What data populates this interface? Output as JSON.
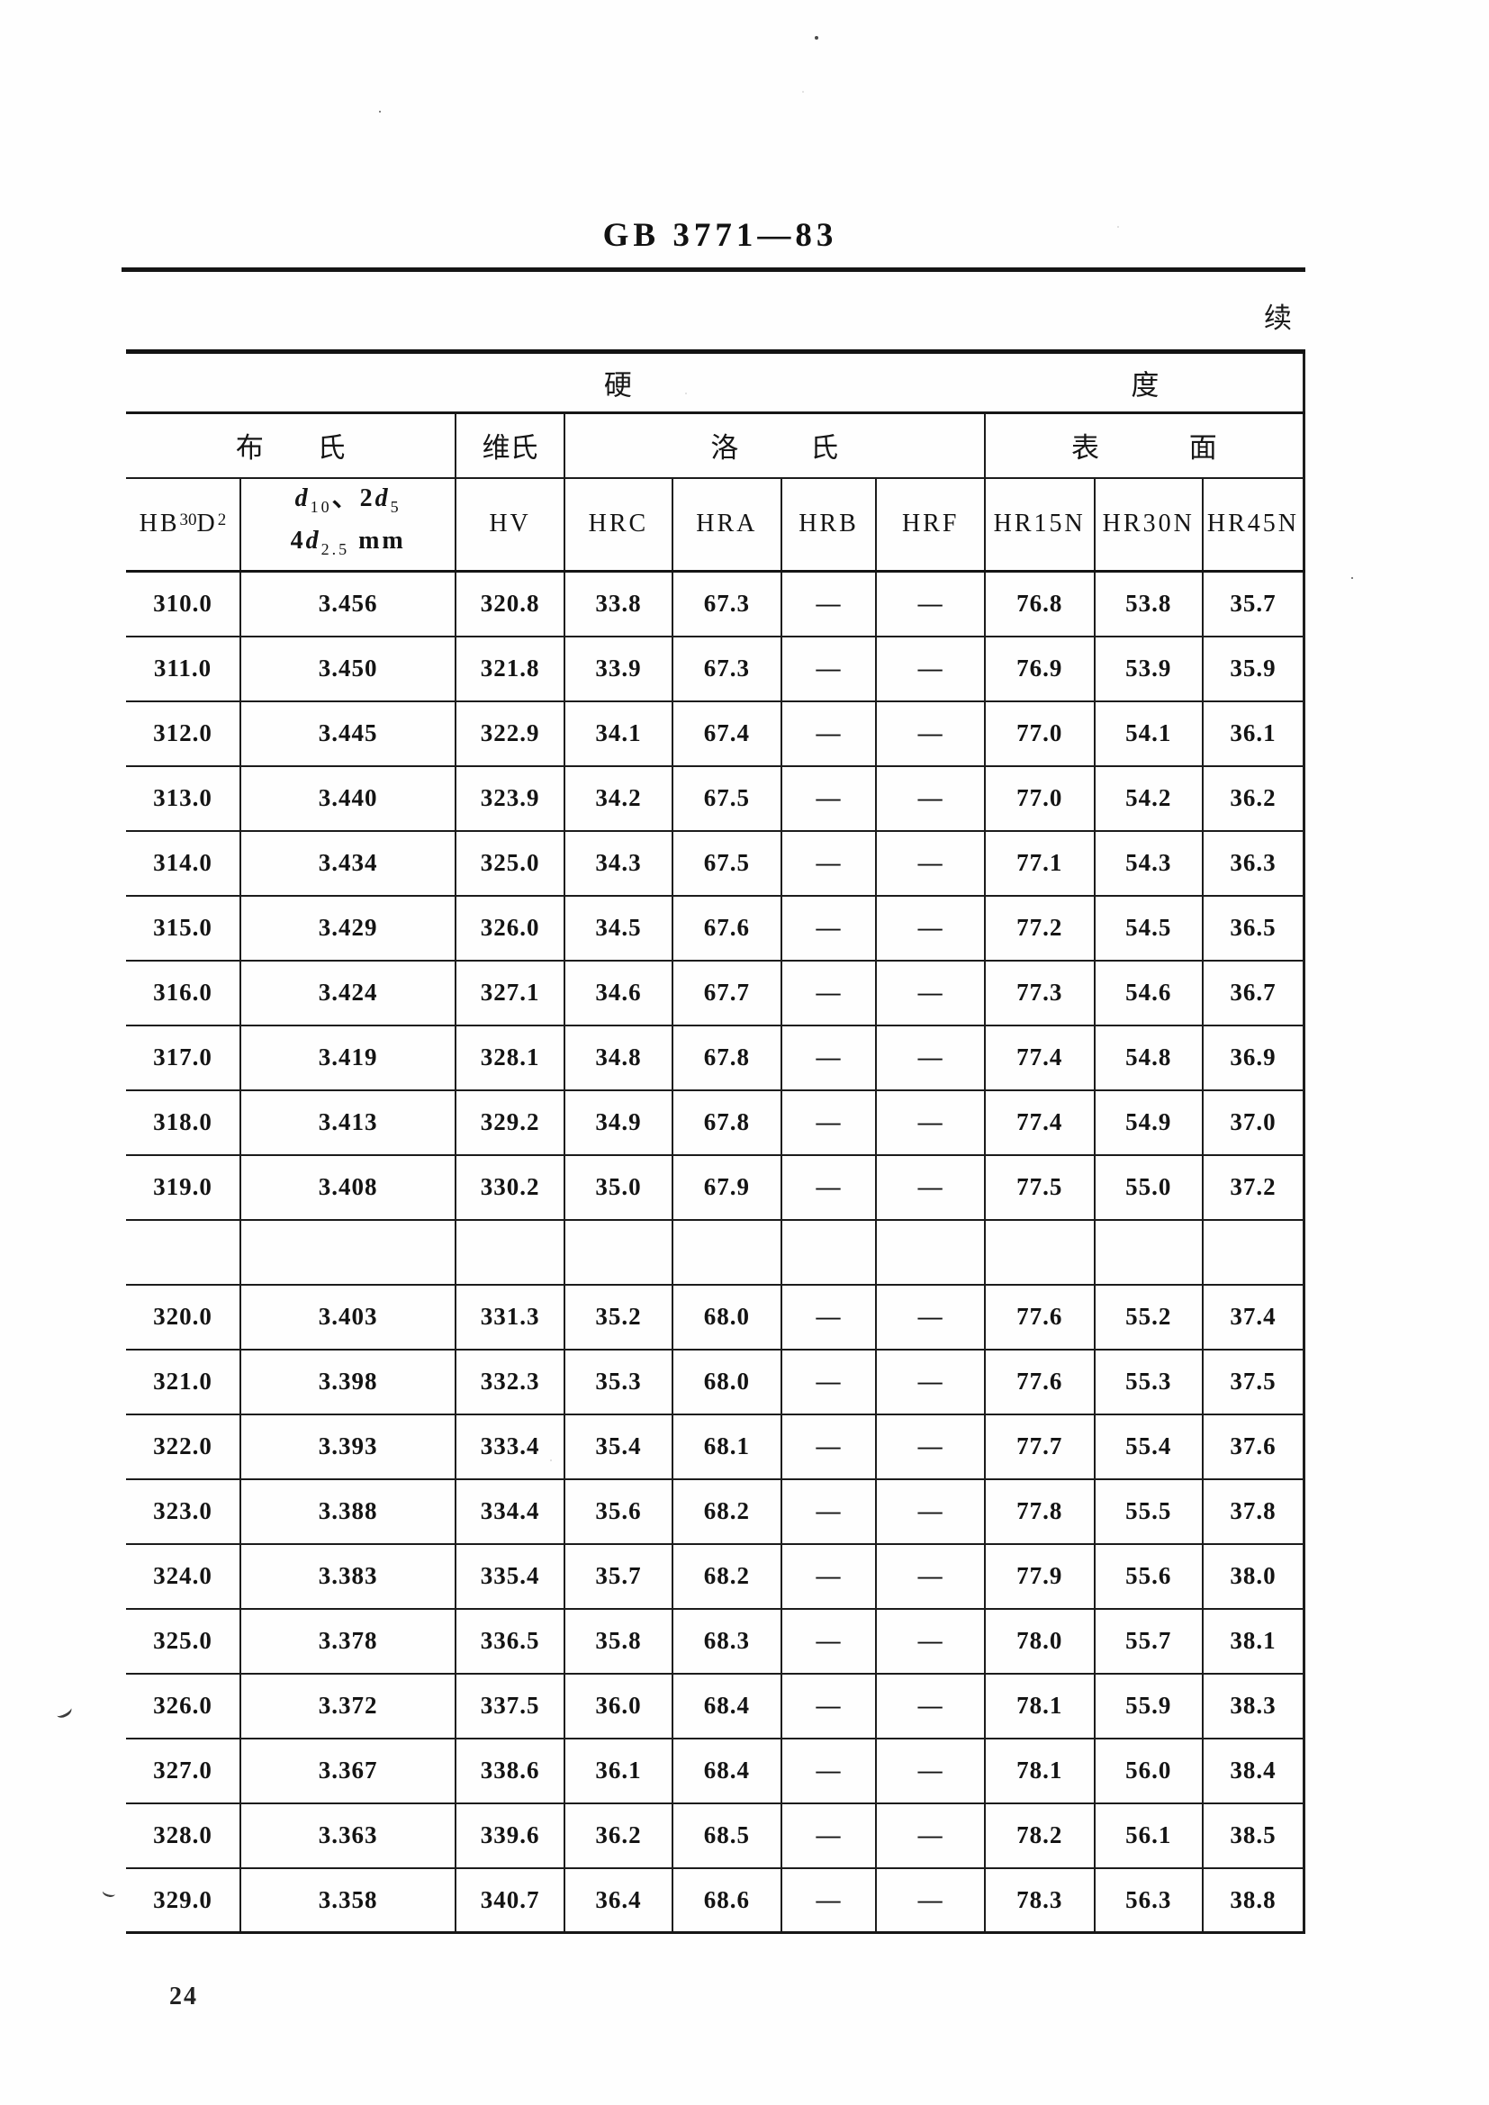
{
  "page": {
    "standard_number": "GB 3771—83",
    "continued_label": "续",
    "page_number": "24"
  },
  "table": {
    "top_header": {
      "left_char": "硬",
      "right_char": "度"
    },
    "group_headers": {
      "brinell": "布 氏",
      "vickers": "维氏",
      "rockwell": "洛 氏",
      "surface": "表 面"
    },
    "column_headers": {
      "hb": {
        "base": "HB",
        "sup1": "30",
        "mid": "D",
        "sup2": "2"
      },
      "d": {
        "l1_sym1": "d",
        "l1_sub1": "10",
        "l1_mid": "、2",
        "l1_sym2": "d",
        "l1_sub2": "5",
        "l2_coef": "4",
        "l2_sym": "d",
        "l2_sub": "2.5",
        "l2_unit": " mm"
      },
      "hv": "HV",
      "hrc": "HRC",
      "hra": "HRA",
      "hrb": "HRB",
      "hrf": "HRF",
      "hr15n": "HR15N",
      "hr30n": "HR30N",
      "hr45n": "HR45N"
    },
    "column_keys": [
      "hb30d2",
      "d-mm",
      "hv",
      "hrc",
      "hra",
      "hrb",
      "hrf",
      "hr15n",
      "hr30n",
      "hr45n"
    ],
    "rows": [
      [
        "310.0",
        "3.456",
        "320.8",
        "33.8",
        "67.3",
        "—",
        "—",
        "76.8",
        "53.8",
        "35.7"
      ],
      [
        "311.0",
        "3.450",
        "321.8",
        "33.9",
        "67.3",
        "—",
        "—",
        "76.9",
        "53.9",
        "35.9"
      ],
      [
        "312.0",
        "3.445",
        "322.9",
        "34.1",
        "67.4",
        "—",
        "—",
        "77.0",
        "54.1",
        "36.1"
      ],
      [
        "313.0",
        "3.440",
        "323.9",
        "34.2",
        "67.5",
        "—",
        "—",
        "77.0",
        "54.2",
        "36.2"
      ],
      [
        "314.0",
        "3.434",
        "325.0",
        "34.3",
        "67.5",
        "—",
        "—",
        "77.1",
        "54.3",
        "36.3"
      ],
      [
        "315.0",
        "3.429",
        "326.0",
        "34.5",
        "67.6",
        "—",
        "—",
        "77.2",
        "54.5",
        "36.5"
      ],
      [
        "316.0",
        "3.424",
        "327.1",
        "34.6",
        "67.7",
        "—",
        "—",
        "77.3",
        "54.6",
        "36.7"
      ],
      [
        "317.0",
        "3.419",
        "328.1",
        "34.8",
        "67.8",
        "—",
        "—",
        "77.4",
        "54.8",
        "36.9"
      ],
      [
        "318.0",
        "3.413",
        "329.2",
        "34.9",
        "67.8",
        "—",
        "—",
        "77.4",
        "54.9",
        "37.0"
      ],
      [
        "319.0",
        "3.408",
        "330.2",
        "35.0",
        "67.9",
        "—",
        "—",
        "77.5",
        "55.0",
        "37.2"
      ],
      [
        "",
        "",
        "",
        "",
        "",
        "",
        "",
        "",
        "",
        ""
      ],
      [
        "320.0",
        "3.403",
        "331.3",
        "35.2",
        "68.0",
        "—",
        "—",
        "77.6",
        "55.2",
        "37.4"
      ],
      [
        "321.0",
        "3.398",
        "332.3",
        "35.3",
        "68.0",
        "—",
        "—",
        "77.6",
        "55.3",
        "37.5"
      ],
      [
        "322.0",
        "3.393",
        "333.4",
        "35.4",
        "68.1",
        "—",
        "—",
        "77.7",
        "55.4",
        "37.6"
      ],
      [
        "323.0",
        "3.388",
        "334.4",
        "35.6",
        "68.2",
        "—",
        "—",
        "77.8",
        "55.5",
        "37.8"
      ],
      [
        "324.0",
        "3.383",
        "335.4",
        "35.7",
        "68.2",
        "—",
        "—",
        "77.9",
        "55.6",
        "38.0"
      ],
      [
        "325.0",
        "3.378",
        "336.5",
        "35.8",
        "68.3",
        "—",
        "—",
        "78.0",
        "55.7",
        "38.1"
      ],
      [
        "326.0",
        "3.372",
        "337.5",
        "36.0",
        "68.4",
        "—",
        "—",
        "78.1",
        "55.9",
        "38.3"
      ],
      [
        "327.0",
        "3.367",
        "338.6",
        "36.1",
        "68.4",
        "—",
        "—",
        "78.1",
        "56.0",
        "38.4"
      ],
      [
        "328.0",
        "3.363",
        "339.6",
        "36.2",
        "68.5",
        "—",
        "—",
        "78.2",
        "56.1",
        "38.5"
      ],
      [
        "329.0",
        "3.358",
        "340.7",
        "36.4",
        "68.6",
        "—",
        "—",
        "78.3",
        "56.3",
        "38.8"
      ]
    ]
  }
}
